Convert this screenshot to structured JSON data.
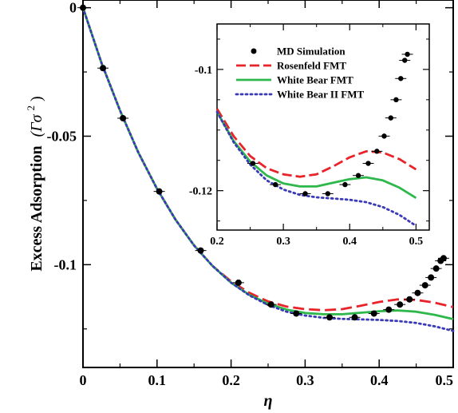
{
  "chart_data": [
    {
      "type": "line",
      "ylabel_text": "Excess Adsorption",
      "ylabel_math": "(Γσ",
      "ylabel_sup": "2",
      "ylabel_close": ")",
      "xlabel": "η",
      "xlim": [
        0,
        0.5
      ],
      "ylim": [
        -0.14,
        0.003
      ],
      "xticks": [
        0,
        0.1,
        0.2,
        0.3,
        0.4,
        0.5
      ],
      "xtick_labels": [
        "0",
        "0.1",
        "0.2",
        "0.3",
        "0.4",
        "0.5"
      ],
      "yticks": [
        0,
        -0.05,
        -0.1
      ],
      "ytick_labels": [
        "0",
        "-0.05",
        "-0.1"
      ],
      "grid": false,
      "md_points": {
        "name": "MD Simulation",
        "x": [
          0.0,
          0.027,
          0.054,
          0.103,
          0.159,
          0.21,
          0.254,
          0.288,
          0.333,
          0.367,
          0.393,
          0.413,
          0.428,
          0.441,
          0.452,
          0.462,
          0.47,
          0.477,
          0.483,
          0.487
        ],
        "y": [
          0.0,
          -0.0235,
          -0.043,
          -0.0715,
          -0.0945,
          -0.107,
          -0.1155,
          -0.119,
          -0.1205,
          -0.1205,
          -0.119,
          -0.1175,
          -0.1155,
          -0.1135,
          -0.111,
          -0.108,
          -0.105,
          -0.1015,
          -0.0985,
          -0.0975
        ],
        "color": "#000000"
      },
      "series": [
        {
          "name": "Rosenfeld FMT",
          "color": "#e8232a",
          "style": "dashed",
          "x": [
            0,
            0.025,
            0.05,
            0.075,
            0.1,
            0.125,
            0.15,
            0.175,
            0.2,
            0.225,
            0.25,
            0.275,
            0.3,
            0.325,
            0.35,
            0.375,
            0.4,
            0.425,
            0.45,
            0.475,
            0.5
          ],
          "y": [
            0,
            -0.0215,
            -0.04,
            -0.0565,
            -0.0705,
            -0.0825,
            -0.0925,
            -0.1005,
            -0.1065,
            -0.111,
            -0.1143,
            -0.1163,
            -0.1173,
            -0.1177,
            -0.1173,
            -0.116,
            -0.1145,
            -0.1135,
            -0.1137,
            -0.1148,
            -0.1165
          ]
        },
        {
          "name": "White Bear FMT",
          "color": "#2eb84b",
          "style": "solid",
          "x": [
            0,
            0.025,
            0.05,
            0.075,
            0.1,
            0.125,
            0.15,
            0.175,
            0.2,
            0.225,
            0.25,
            0.275,
            0.3,
            0.325,
            0.35,
            0.375,
            0.4,
            0.425,
            0.45,
            0.475,
            0.5
          ],
          "y": [
            0,
            -0.0215,
            -0.04,
            -0.0565,
            -0.0705,
            -0.0825,
            -0.0925,
            -0.1005,
            -0.107,
            -0.1118,
            -0.1152,
            -0.1175,
            -0.1188,
            -0.1193,
            -0.1193,
            -0.1187,
            -0.1181,
            -0.1178,
            -0.1183,
            -0.1195,
            -0.1212
          ]
        },
        {
          "name": "White Bear II FMT",
          "color": "#3a3ab8",
          "style": "dotted",
          "x": [
            0,
            0.025,
            0.05,
            0.075,
            0.1,
            0.125,
            0.15,
            0.175,
            0.2,
            0.225,
            0.25,
            0.275,
            0.3,
            0.325,
            0.35,
            0.375,
            0.4,
            0.425,
            0.45,
            0.475,
            0.5
          ],
          "y": [
            0,
            -0.0215,
            -0.04,
            -0.0565,
            -0.0705,
            -0.0825,
            -0.0925,
            -0.1005,
            -0.107,
            -0.112,
            -0.1157,
            -0.1183,
            -0.1198,
            -0.1207,
            -0.1211,
            -0.1213,
            -0.1215,
            -0.1219,
            -0.1227,
            -0.124,
            -0.1258
          ]
        }
      ]
    },
    {
      "type": "line",
      "xlim": [
        0.2,
        0.52
      ],
      "ylim": [
        -0.1265,
        -0.0925
      ],
      "xticks": [
        0.2,
        0.3,
        0.4,
        0.5
      ],
      "xtick_labels": [
        "0.2",
        "0.3",
        "0.4",
        "0.5"
      ],
      "yticks": [
        -0.1,
        -0.12
      ],
      "ytick_labels": [
        "-0.1",
        "-0.12"
      ],
      "grid": false,
      "legend_position": "top-left",
      "legend": [
        "MD Simulation",
        "Rosenfeld FMT",
        "White Bear FMT",
        "White Bear II FMT"
      ],
      "md_points": {
        "name": "MD Simulation",
        "x": [
          0.254,
          0.288,
          0.333,
          0.367,
          0.393,
          0.413,
          0.428,
          0.441,
          0.452,
          0.462,
          0.47,
          0.477,
          0.483,
          0.487
        ],
        "y": [
          -0.1155,
          -0.119,
          -0.1205,
          -0.1205,
          -0.119,
          -0.1175,
          -0.1155,
          -0.1135,
          -0.111,
          -0.108,
          -0.105,
          -0.1015,
          -0.0985,
          -0.0975
        ]
      }
    }
  ]
}
